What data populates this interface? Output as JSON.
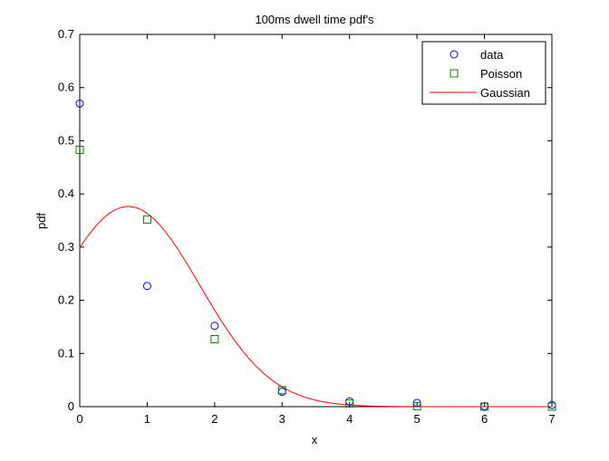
{
  "chart_data": {
    "type": "scatter",
    "title": "100ms dwell time pdf's",
    "xlabel": "x",
    "ylabel": "pdf",
    "xlim": [
      0,
      7
    ],
    "ylim": [
      0,
      0.7
    ],
    "xticks": [
      "0",
      "1",
      "2",
      "3",
      "4",
      "5",
      "6",
      "7"
    ],
    "yticks": [
      "0",
      "0.1",
      "0.2",
      "0.3",
      "0.4",
      "0.5",
      "0.6",
      "0.7"
    ],
    "legend_position": "top-right",
    "grid": false,
    "series": [
      {
        "name": "data",
        "kind": "marker",
        "marker": "circle",
        "color": "#0000ff",
        "x": [
          0,
          1,
          2,
          3,
          4,
          5,
          6,
          7
        ],
        "y": [
          0.57,
          0.227,
          0.152,
          0.028,
          0.01,
          0.007,
          0.001,
          0.003
        ]
      },
      {
        "name": "Poisson",
        "kind": "marker",
        "marker": "square",
        "color": "#008000",
        "x": [
          0,
          1,
          2,
          3,
          4,
          5,
          6,
          7
        ],
        "y": [
          0.483,
          0.352,
          0.127,
          0.031,
          0.006,
          0.001,
          0.0,
          0.0
        ]
      },
      {
        "name": "Gaussian",
        "kind": "line",
        "color": "#ff0000",
        "mean": 0.72,
        "sd": 1.06
      }
    ]
  }
}
